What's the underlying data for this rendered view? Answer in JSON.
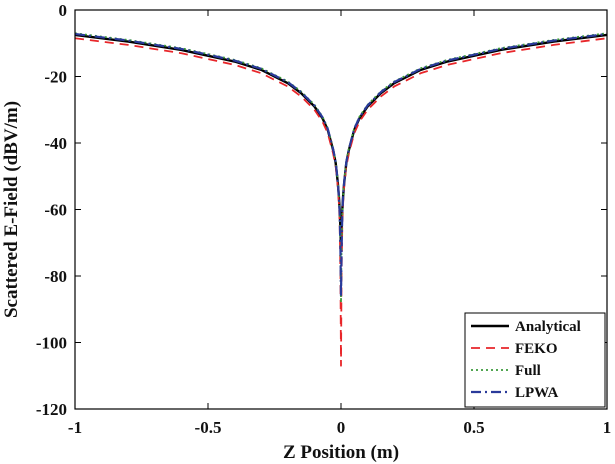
{
  "chart_data": {
    "type": "line",
    "title": "",
    "xlabel": "Z Position (m)",
    "ylabel": "Scattered E-Field (dBV/m)",
    "xlim": [
      -1,
      1
    ],
    "ylim": [
      -120,
      0
    ],
    "xticks": [
      -1,
      -0.5,
      0,
      0.5,
      1
    ],
    "xtick_labels": [
      "-1",
      "-0.5",
      "0",
      "0.5",
      "1"
    ],
    "yticks": [
      0,
      -20,
      -40,
      -60,
      -80,
      -100,
      -120
    ],
    "ytick_labels": [
      "0",
      "-20",
      "-40",
      "-60",
      "-80",
      "-100",
      "-120"
    ],
    "grid": false,
    "legend_position": "bottom-right",
    "series": [
      {
        "name": "Analytical",
        "color": "#000000",
        "dash": "solid",
        "x": [
          -1,
          -0.8,
          -0.6,
          -0.4,
          -0.3,
          -0.2,
          -0.15,
          -0.1,
          -0.07,
          -0.05,
          -0.03,
          -0.02,
          -0.012,
          -0.008,
          -0.005,
          -0.002,
          0,
          0.002,
          0.005,
          0.008,
          0.012,
          0.02,
          0.03,
          0.05,
          0.07,
          0.1,
          0.15,
          0.2,
          0.3,
          0.4,
          0.6,
          0.8,
          1
        ],
        "y": [
          -7.5,
          -9.5,
          -12,
          -15.5,
          -18,
          -22,
          -25,
          -29,
          -32.5,
          -36,
          -42,
          -46,
          -52,
          -56,
          -60,
          -66,
          -72,
          -66,
          -60,
          -56,
          -52,
          -46,
          -42,
          -36,
          -32.5,
          -29,
          -25,
          -22,
          -18,
          -15.5,
          -12,
          -9.5,
          -7.5
        ]
      },
      {
        "name": "FEKO",
        "color": "#e8262a",
        "dash": "long-dash",
        "x": [
          -1,
          -0.8,
          -0.6,
          -0.4,
          -0.3,
          -0.2,
          -0.15,
          -0.1,
          -0.07,
          -0.05,
          -0.03,
          -0.02,
          -0.012,
          -0.008,
          -0.005,
          -0.002,
          0,
          0.002,
          0.005,
          0.008,
          0.012,
          0.02,
          0.03,
          0.05,
          0.07,
          0.1,
          0.15,
          0.2,
          0.3,
          0.4,
          0.6,
          0.8,
          1
        ],
        "y": [
          -8.5,
          -10.5,
          -13,
          -16.5,
          -19,
          -23,
          -26,
          -30,
          -33.5,
          -37,
          -43,
          -47,
          -53,
          -58,
          -64,
          -80,
          -107,
          -80,
          -64,
          -58,
          -53,
          -47,
          -43,
          -37,
          -33.5,
          -30,
          -26,
          -23,
          -19,
          -16.5,
          -13,
          -10.5,
          -8.5
        ]
      },
      {
        "name": "Full",
        "color": "#3a9a3a",
        "dash": "dotted",
        "x": [
          -1,
          -0.8,
          -0.6,
          -0.4,
          -0.3,
          -0.2,
          -0.15,
          -0.1,
          -0.07,
          -0.05,
          -0.03,
          -0.02,
          -0.012,
          -0.008,
          -0.005,
          -0.002,
          0,
          0.002,
          0.005,
          0.008,
          0.012,
          0.02,
          0.03,
          0.05,
          0.07,
          0.1,
          0.15,
          0.2,
          0.3,
          0.4,
          0.6,
          0.8,
          1
        ],
        "y": [
          -7,
          -9,
          -11.5,
          -15,
          -17.5,
          -21.5,
          -24.5,
          -28.5,
          -32,
          -35.5,
          -41.5,
          -45.5,
          -51.5,
          -56,
          -61,
          -72,
          -88,
          -72,
          -61,
          -56,
          -51.5,
          -45.5,
          -41.5,
          -35.5,
          -32,
          -28.5,
          -24.5,
          -21.5,
          -17.5,
          -15,
          -11.5,
          -9,
          -7
        ]
      },
      {
        "name": "LPWA",
        "color": "#2a3a9a",
        "dash": "dash-dot",
        "x": [
          -1,
          -0.8,
          -0.6,
          -0.4,
          -0.3,
          -0.2,
          -0.15,
          -0.1,
          -0.07,
          -0.05,
          -0.03,
          -0.02,
          -0.012,
          -0.008,
          -0.005,
          -0.002,
          0,
          0.002,
          0.005,
          0.008,
          0.012,
          0.02,
          0.03,
          0.05,
          0.07,
          0.1,
          0.15,
          0.2,
          0.3,
          0.4,
          0.6,
          0.8,
          1
        ],
        "y": [
          -7.2,
          -9.2,
          -11.7,
          -15.2,
          -17.7,
          -21.7,
          -24.7,
          -28.7,
          -32.2,
          -35.7,
          -41.7,
          -45.7,
          -51.7,
          -56,
          -61,
          -73,
          -86,
          -73,
          -61,
          -56,
          -51.7,
          -45.7,
          -41.7,
          -35.7,
          -32.2,
          -28.7,
          -24.7,
          -21.7,
          -17.7,
          -15.2,
          -11.7,
          -9.2,
          -7.2
        ]
      }
    ]
  }
}
